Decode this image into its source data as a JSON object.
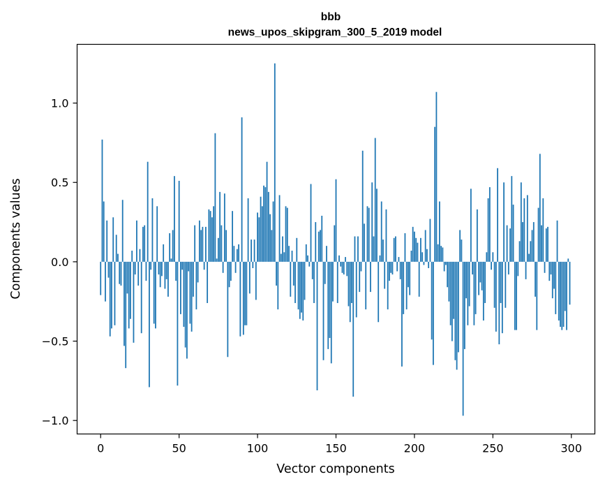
{
  "chart_data": {
    "type": "bar",
    "title": "bbb",
    "subtitle": "news_upos_skipgram_300_5_2019 model",
    "xlabel": "Vector components",
    "ylabel": "Components values",
    "xlim": [
      -15,
      315
    ],
    "ylim": [
      -1.085,
      1.37
    ],
    "xticks": [
      0,
      50,
      100,
      150,
      200,
      250,
      300
    ],
    "yticks": [
      -1.0,
      -0.5,
      0.0,
      0.5,
      1.0
    ],
    "xtick_labels": [
      "0",
      "50",
      "100",
      "150",
      "200",
      "250",
      "300"
    ],
    "ytick_labels": [
      "−1.0",
      "−0.5",
      "0.0",
      "0.5",
      "1.0"
    ],
    "grid": false,
    "bar_color": "#1f77b4",
    "values": [
      -0.21,
      0.77,
      0.38,
      -0.25,
      0.26,
      -0.1,
      -0.47,
      -0.42,
      0.28,
      -0.4,
      0.17,
      0.05,
      -0.14,
      -0.15,
      0.39,
      -0.53,
      -0.67,
      -0.2,
      -0.42,
      -0.36,
      0.07,
      -0.51,
      -0.08,
      0.26,
      -0.15,
      0.08,
      -0.45,
      0.22,
      0.23,
      -0.12,
      0.63,
      -0.79,
      -0.05,
      0.4,
      -0.39,
      -0.42,
      0.35,
      -0.08,
      -0.16,
      -0.09,
      0.11,
      -0.17,
      -0.11,
      -0.22,
      0.18,
      0.02,
      0.2,
      0.54,
      -0.12,
      -0.78,
      0.51,
      -0.33,
      -0.05,
      -0.41,
      -0.54,
      -0.61,
      -0.06,
      -0.39,
      -0.44,
      -0.22,
      0.23,
      -0.3,
      -0.13,
      0.26,
      0.2,
      0.22,
      -0.05,
      0.22,
      -0.26,
      0.33,
      0.32,
      0.28,
      0.35,
      0.81,
      0.02,
      0.15,
      0.44,
      0.23,
      -0.07,
      0.43,
      0.2,
      -0.6,
      -0.16,
      -0.12,
      0.32,
      0.1,
      -0.07,
      0.08,
      0.11,
      -0.47,
      0.91,
      -0.46,
      -0.4,
      -0.4,
      0.4,
      -0.2,
      0.14,
      -0.04,
      0.14,
      -0.24,
      0.31,
      0.28,
      0.41,
      0.35,
      0.48,
      0.47,
      0.63,
      0.44,
      0.3,
      0.2,
      0.38,
      1.25,
      -0.15,
      -0.3,
      0.42,
      0.05,
      0.16,
      0.06,
      0.35,
      0.34,
      0.1,
      -0.22,
      0.07,
      -0.15,
      -0.26,
      0.15,
      -0.3,
      -0.36,
      -0.32,
      -0.37,
      -0.24,
      0.11,
      0.04,
      -0.03,
      0.49,
      -0.11,
      -0.26,
      0.25,
      -0.81,
      0.19,
      0.2,
      0.29,
      -0.62,
      -0.14,
      0.1,
      -0.55,
      -0.48,
      -0.64,
      -0.25,
      0.23,
      0.52,
      -0.26,
      0.04,
      -0.03,
      -0.07,
      -0.08,
      0.03,
      -0.09,
      -0.28,
      -0.38,
      -0.26,
      -0.85,
      0.16,
      -0.35,
      0.16,
      -0.19,
      -0.06,
      0.7,
      0.24,
      -0.3,
      0.35,
      0.34,
      -0.19,
      0.5,
      0.16,
      0.78,
      0.46,
      -0.38,
      0.04,
      0.38,
      0.14,
      -0.17,
      0.33,
      -0.3,
      -0.12,
      -0.07,
      -0.08,
      0.15,
      0.16,
      -0.06,
      0.03,
      -0.11,
      -0.66,
      -0.33,
      0.18,
      -0.3,
      -0.16,
      -0.21,
      0.07,
      0.22,
      0.19,
      0.15,
      0.12,
      -0.22,
      0.15,
      0.06,
      -0.02,
      0.2,
      0.08,
      -0.04,
      0.27,
      -0.49,
      -0.65,
      0.85,
      1.07,
      0.11,
      0.38,
      0.1,
      0.09,
      -0.06,
      -0.02,
      -0.16,
      -0.25,
      -0.4,
      -0.5,
      -0.36,
      -0.62,
      -0.68,
      -0.57,
      0.2,
      0.14,
      -0.97,
      -0.55,
      -0.23,
      -0.4,
      -0.28,
      0.46,
      -0.08,
      -0.4,
      -0.33,
      0.33,
      -0.21,
      -0.13,
      -0.18,
      -0.37,
      -0.26,
      0.06,
      0.4,
      0.47,
      -0.05,
      0.06,
      -0.29,
      -0.44,
      0.59,
      -0.52,
      -0.26,
      -0.45,
      0.5,
      -0.29,
      0.23,
      -0.08,
      0.21,
      0.54,
      0.36,
      -0.43,
      -0.43,
      -0.09,
      0.13,
      0.5,
      0.25,
      0.4,
      -0.11,
      0.42,
      0.05,
      0.13,
      0.2,
      0.25,
      -0.22,
      -0.43,
      0.34,
      0.68,
      0.23,
      0.4,
      -0.07,
      0.21,
      0.22,
      -0.12,
      -0.08,
      -0.23,
      -0.17,
      -0.33,
      0.26,
      -0.37,
      -0.41,
      -0.43,
      -0.41,
      -0.31,
      -0.43,
      0.02,
      -0.27
    ]
  }
}
